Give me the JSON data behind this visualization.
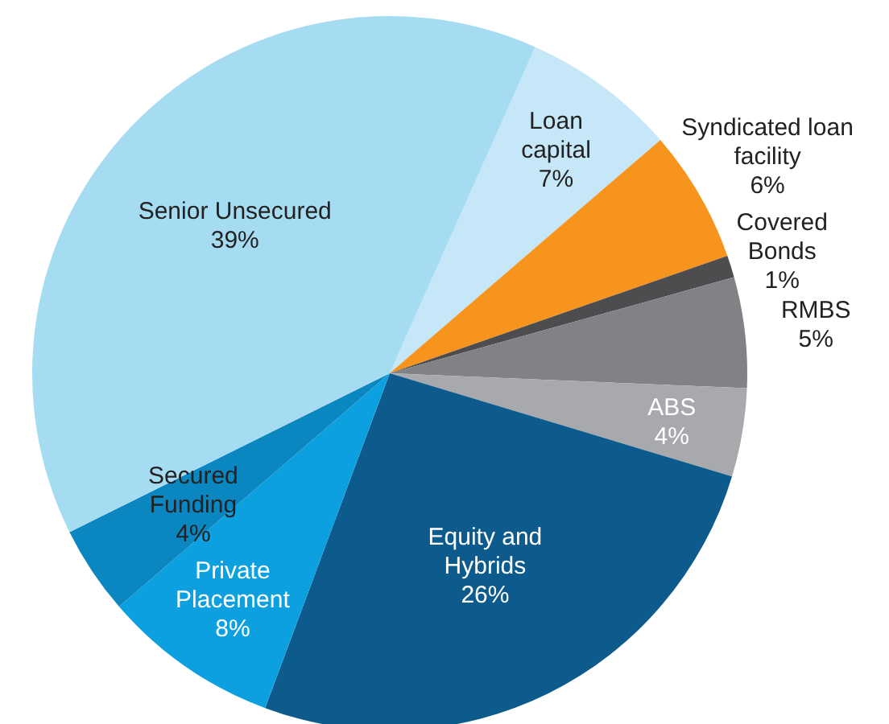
{
  "chart_data": {
    "type": "pie",
    "categories": [
      "Loan capital",
      "Syndicated loan facility",
      "Covered Bonds",
      "RMBS",
      "ABS",
      "Equity and Hybrids",
      "Private Placement",
      "Secured Funding",
      "Senior Unsecured"
    ],
    "values": [
      7,
      6,
      1,
      5,
      4,
      26,
      8,
      4,
      39
    ],
    "value_labels": [
      "7%",
      "6%",
      "1%",
      "5%",
      "4%",
      "26%",
      "8%",
      "4%",
      "39%"
    ],
    "colors": [
      "#c5e7f7",
      "#f7941d",
      "#4d4d4f",
      "#808285",
      "#a7a9ac",
      "#0d5a8c",
      "#0ca0e0",
      "#0a86c0",
      "#a6dcf2"
    ]
  }
}
